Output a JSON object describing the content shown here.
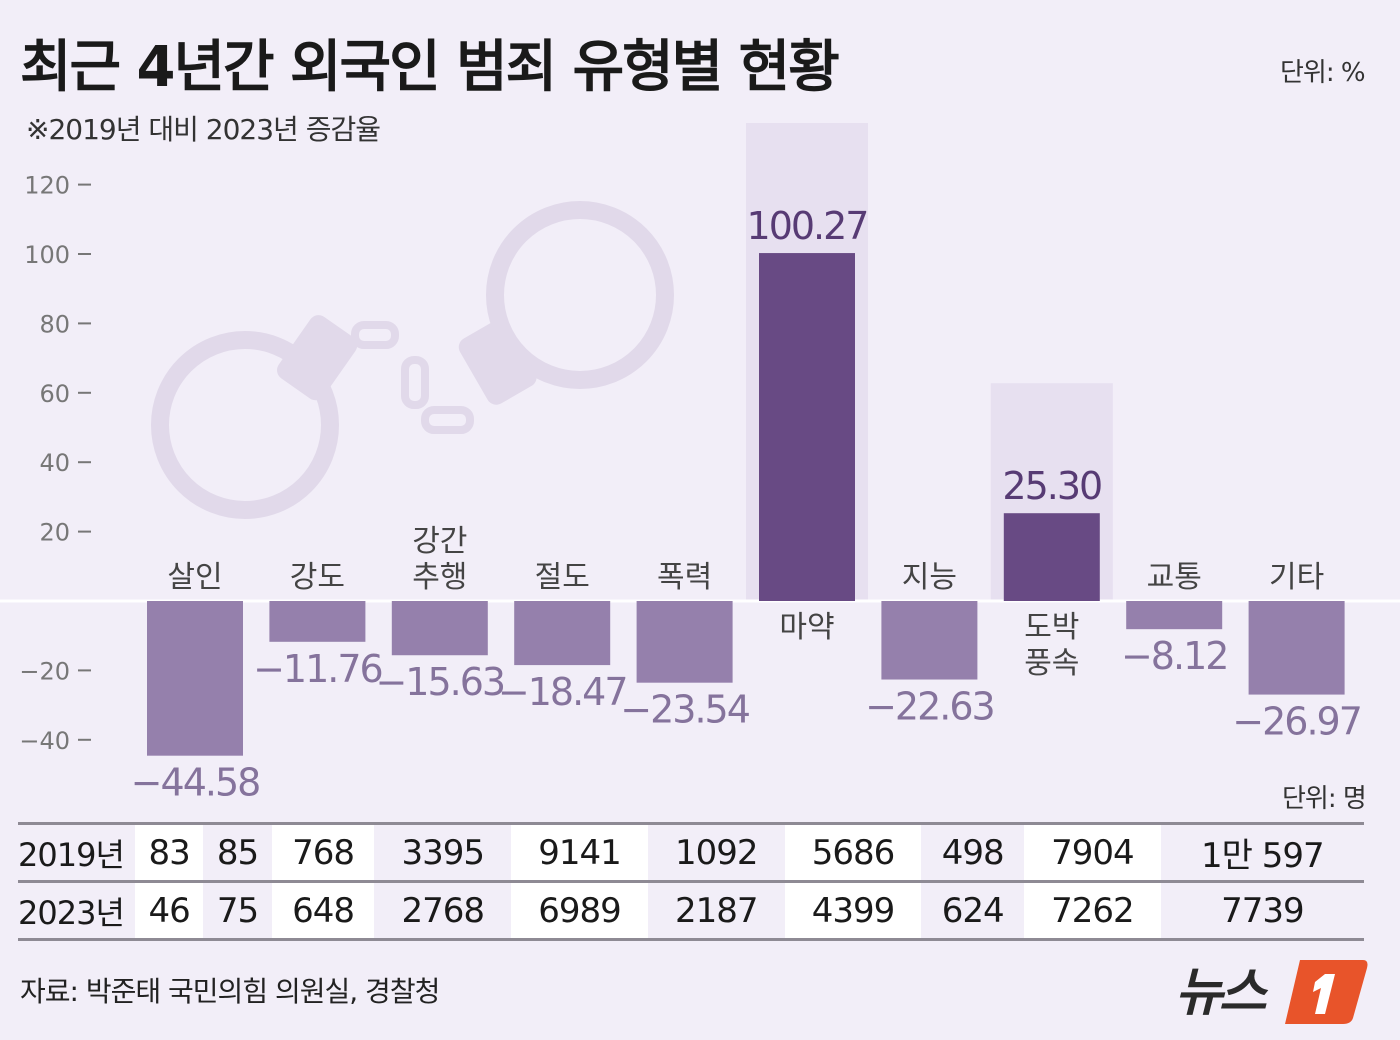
{
  "title": "최근 4년간 외국인 범죄 유형별 현황",
  "subtitle": "※2019년 대비 2023년 증감율",
  "chart_unit": "단위: %",
  "table_unit": "단위: 명",
  "colors": {
    "positive_bar": "#684a84",
    "negative_bar": "#9580ac",
    "positive_label": "#573b74",
    "negative_label": "#85739c",
    "background": "#f2eef8"
  },
  "chart_data": {
    "type": "bar",
    "categories": [
      "살인",
      "강도",
      "강간\n추행",
      "절도",
      "폭력",
      "마약",
      "지능",
      "도박\n풍속",
      "교통",
      "기타"
    ],
    "values": [
      -44.58,
      -11.76,
      -15.63,
      -18.47,
      -23.54,
      100.27,
      -22.63,
      25.3,
      -8.12,
      -26.97
    ],
    "value_labels": [
      "−44.58",
      "−11.76",
      "−15.63",
      "−18.47",
      "−23.54",
      "100.27",
      "−22.63",
      "25.30",
      "−8.12",
      "−26.97"
    ],
    "yticks": [
      120,
      100,
      80,
      60,
      40,
      20,
      -20,
      -40
    ],
    "ylim": [
      -45,
      120
    ],
    "grid": false
  },
  "table": {
    "rows": [
      {
        "label": "2019년",
        "values": [
          "83",
          "85",
          "768",
          "3395",
          "9141",
          "1092",
          "5686",
          "498",
          "7904",
          "1만 597"
        ]
      },
      {
        "label": "2023년",
        "values": [
          "46",
          "75",
          "648",
          "2768",
          "6989",
          "2187",
          "4399",
          "624",
          "7262",
          "7739"
        ]
      }
    ]
  },
  "source": "자료: 박준태 국민의힘 의원실, 경찰청",
  "logo": "뉴스1"
}
